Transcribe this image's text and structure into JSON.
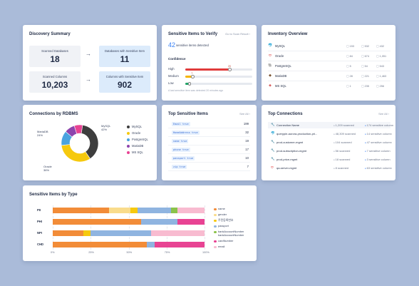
{
  "discovery": {
    "title": "Discovery Summary",
    "scanned_db_label": "Scanned Databases",
    "scanned_db_value": "18",
    "db_sensitive_label": "Databases with Sensitive Item",
    "db_sensitive_value": "11",
    "scanned_col_label": "Scanned Columns",
    "scanned_col_value": "10,203",
    "col_sensitive_label": "Columns with Sensitive Item",
    "col_sensitive_value": "902"
  },
  "verify": {
    "title": "Sensitive Items to Verify",
    "link": "Go to Scan Result  ›",
    "count": "42",
    "count_label": "sensitive items detected",
    "confidence_label": "Confidence",
    "rows": [
      {
        "label": "High",
        "value": "20",
        "fraction": 0.66,
        "color": "#e03b3b"
      },
      {
        "label": "Medium",
        "value": "7",
        "fraction": 0.11,
        "color": "#f5b400"
      },
      {
        "label": "Low",
        "value": "",
        "fraction": 0.06,
        "color": "#21a366"
      }
    ],
    "footer": "A last sensitive item was detected 20 minutes ago"
  },
  "inventory": {
    "title": "Inventory Overview",
    "rows": [
      {
        "name": "MySQL",
        "icon": "🐬",
        "icon_color": "#3b6fd6",
        "a": "153",
        "b": "532",
        "c": "432"
      },
      {
        "name": "Oracle",
        "icon": "⬭",
        "icon_color": "#e03b3b",
        "a": "84",
        "b": "674",
        "c": "1,051"
      },
      {
        "name": "PostgreSQL",
        "icon": "🐘",
        "icon_color": "#3b5d8c",
        "a": "5",
        "b": "54",
        "c": "543"
      },
      {
        "name": "MariaDB",
        "icon": "◆",
        "icon_color": "#7a5230",
        "a": "28",
        "b": "221",
        "c": "1,463"
      },
      {
        "name": "MS SQL",
        "icon": "◈",
        "icon_color": "#cc3333",
        "a": "1",
        "b": "235",
        "c": "256"
      }
    ]
  },
  "rdbms": {
    "title": "Connections by RDBMS",
    "labels": {
      "mysql": "MySQL\n42%",
      "mariadb": "MariaDB\n24%",
      "oracle": "Oracle\n36%"
    },
    "legend": [
      {
        "name": "MySQL",
        "color": "#3d3d3d"
      },
      {
        "name": "Oracle",
        "color": "#f6c90e"
      },
      {
        "name": "PostgreSQL",
        "color": "#4aa3df"
      },
      {
        "name": "MariaDB",
        "color": "#8e44ad"
      },
      {
        "name": "MS SQL",
        "color": "#e84393"
      }
    ]
  },
  "top_sensitive": {
    "title": "Top Sensitive Items",
    "link": "See All  ›",
    "rows": [
      {
        "item": "Email   true",
        "count": "199"
      },
      {
        "item": "HomeAddress   true",
        "count": "32"
      },
      {
        "item": "name   true",
        "count": "19"
      },
      {
        "item": "phone   true",
        "count": "17"
      },
      {
        "item": "passport   true",
        "count": "10"
      },
      {
        "item": "zip   true",
        "count": "7"
      }
    ]
  },
  "top_connections": {
    "title": "Top Connections",
    "link": "See All  ›",
    "rows": [
      {
        "name": "Connection Name",
        "scanned": "1,209 scanned",
        "sensitive": "174 sensitive column",
        "icon": "🔧",
        "color": "#3b6fd6"
      },
      {
        "name": "querypie-aurora-production-pri...",
        "scanned": "48,309 scanned",
        "sensitive": "14 sensitive column",
        "icon": "🐬",
        "color": "#3b6fd6"
      },
      {
        "name": "prod-customer-mgmt",
        "scanned": "104 scanned",
        "sensitive": "47 sensitive column",
        "icon": "🔧",
        "color": "#7a5230"
      },
      {
        "name": "prod-subscription-mgmt",
        "scanned": "56 scanned",
        "sensitive": "7 sensitive column",
        "icon": "🔧",
        "color": "#7a5230"
      },
      {
        "name": "prod-price-mgmt",
        "scanned": "18 scanned",
        "sensitive": "3 sensitive column",
        "icon": "🔧",
        "color": "#7a5230"
      },
      {
        "name": "qa-server-mgmt",
        "scanned": "8 scanned",
        "sensitive": "63 sensitive column",
        "icon": "⬭",
        "color": "#e03b3b"
      }
    ]
  },
  "by_type": {
    "title": "Sensitive Items by Type",
    "categories": [
      "PII",
      "PHI",
      "NPI",
      "CHD"
    ],
    "ticks": [
      "0%",
      "25%",
      "50%",
      "75%",
      "100%"
    ],
    "series": [
      {
        "name": "name",
        "color": "#f28c38"
      },
      {
        "name": "gender",
        "color": "#f9dc8c"
      },
      {
        "name": "주민등록번호",
        "color": "#f6c90e"
      },
      {
        "name": "passport",
        "color": "#8fb4e0"
      },
      {
        "name": "bankAccountNumber bankAccountNumber",
        "color": "#8bc34a"
      },
      {
        "name": "cardNumber",
        "color": "#e84393"
      },
      {
        "name": "email",
        "color": "#f8bbd0"
      }
    ],
    "rows": [
      [
        37,
        14,
        5,
        22,
        4,
        0,
        18
      ],
      [
        58,
        0,
        0,
        24,
        0,
        18,
        0
      ],
      [
        20,
        0,
        5,
        40,
        0,
        0,
        35
      ],
      [
        62,
        0,
        0,
        5,
        0,
        33,
        0
      ]
    ]
  }
}
